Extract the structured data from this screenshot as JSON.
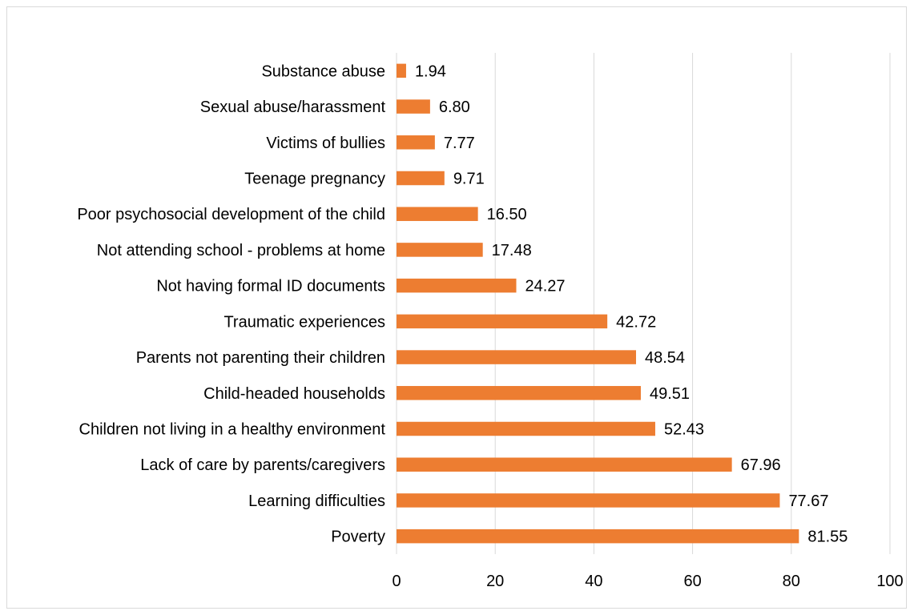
{
  "colors": {
    "bar": "#ED7D31",
    "grid": "#D9D9D9",
    "text": "#000000"
  },
  "chart_data": {
    "type": "bar",
    "orientation": "horizontal",
    "title": "",
    "xlabel": "",
    "ylabel": "",
    "xlim": [
      0,
      100
    ],
    "xticks": [
      0,
      20,
      40,
      60,
      80,
      100
    ],
    "grid": "vertical",
    "legend": "none",
    "categories": [
      "Substance abuse",
      "Sexual abuse/harassment",
      "Victims of bullies",
      "Teenage pregnancy",
      "Poor psychosocial development of the child",
      "Not attending school - problems at home",
      "Not having formal ID documents",
      "Traumatic experiences",
      "Parents not parenting their children",
      "Child-headed households",
      "Children not living in a healthy environment",
      "Lack of care by parents/caregivers",
      "Learning difficulties",
      "Poverty"
    ],
    "values": [
      1.94,
      6.8,
      7.77,
      9.71,
      16.5,
      17.48,
      24.27,
      42.72,
      48.54,
      49.51,
      52.43,
      67.96,
      77.67,
      81.55
    ],
    "data_labels": [
      "1.94",
      "6.80",
      "7.77",
      "9.71",
      "16.50",
      "17.48",
      "24.27",
      "42.72",
      "48.54",
      "49.51",
      "52.43",
      "67.96",
      "77.67",
      "81.55"
    ]
  }
}
